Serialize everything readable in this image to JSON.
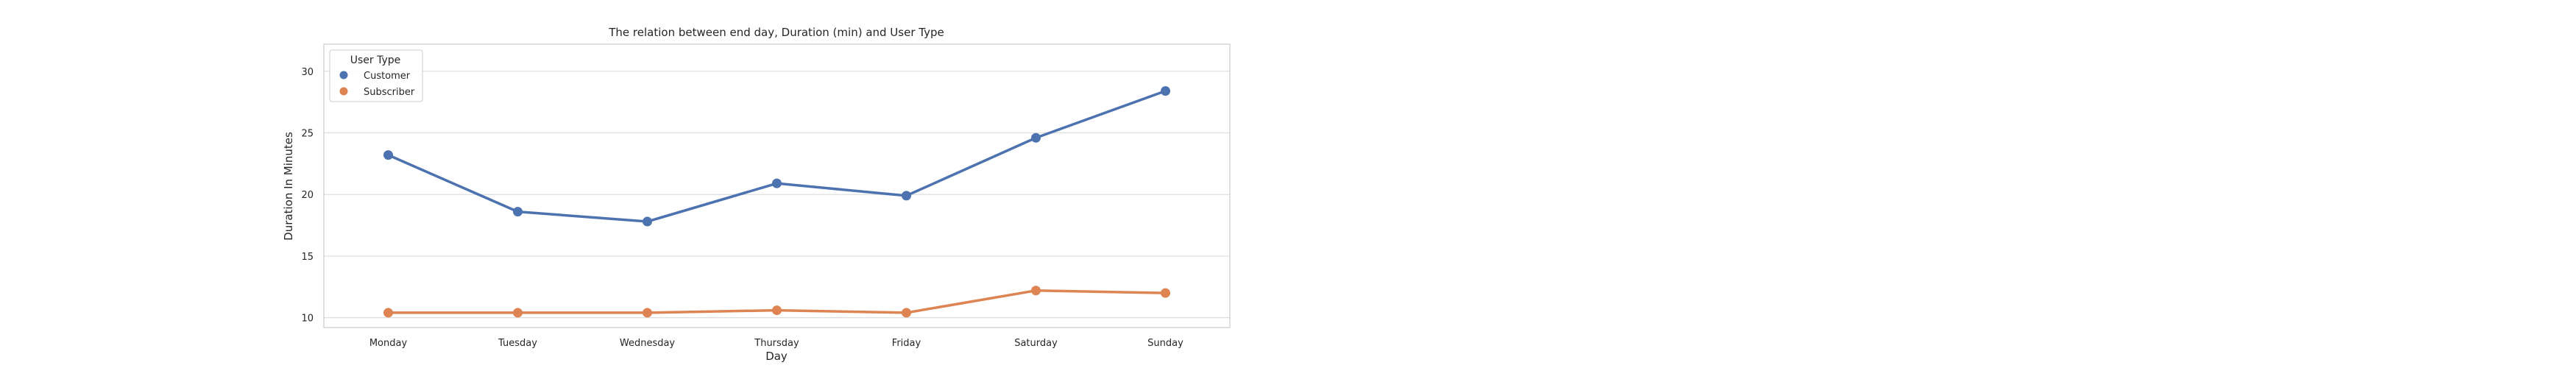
{
  "chart_data": {
    "type": "line",
    "title": "The relation between end day, Duration (min) and User Type",
    "xlabel": "Day",
    "ylabel": "Duration In Minutes",
    "categories": [
      "Monday",
      "Tuesday",
      "Wednesday",
      "Thursday",
      "Friday",
      "Saturday",
      "Sunday"
    ],
    "ylim": [
      9.2,
      32.2
    ],
    "yticks": [
      10,
      15,
      20,
      25,
      30
    ],
    "grid": true,
    "legend": {
      "title": "User Type",
      "placement": "top-left"
    },
    "series": [
      {
        "name": "Customer",
        "color": "#4c72b0",
        "values": [
          23.2,
          18.6,
          17.8,
          20.9,
          19.9,
          24.6,
          28.4
        ]
      },
      {
        "name": "Subscriber",
        "color": "#dd8452",
        "values": [
          10.4,
          10.4,
          10.4,
          10.6,
          10.4,
          12.2,
          12.0
        ]
      }
    ]
  }
}
